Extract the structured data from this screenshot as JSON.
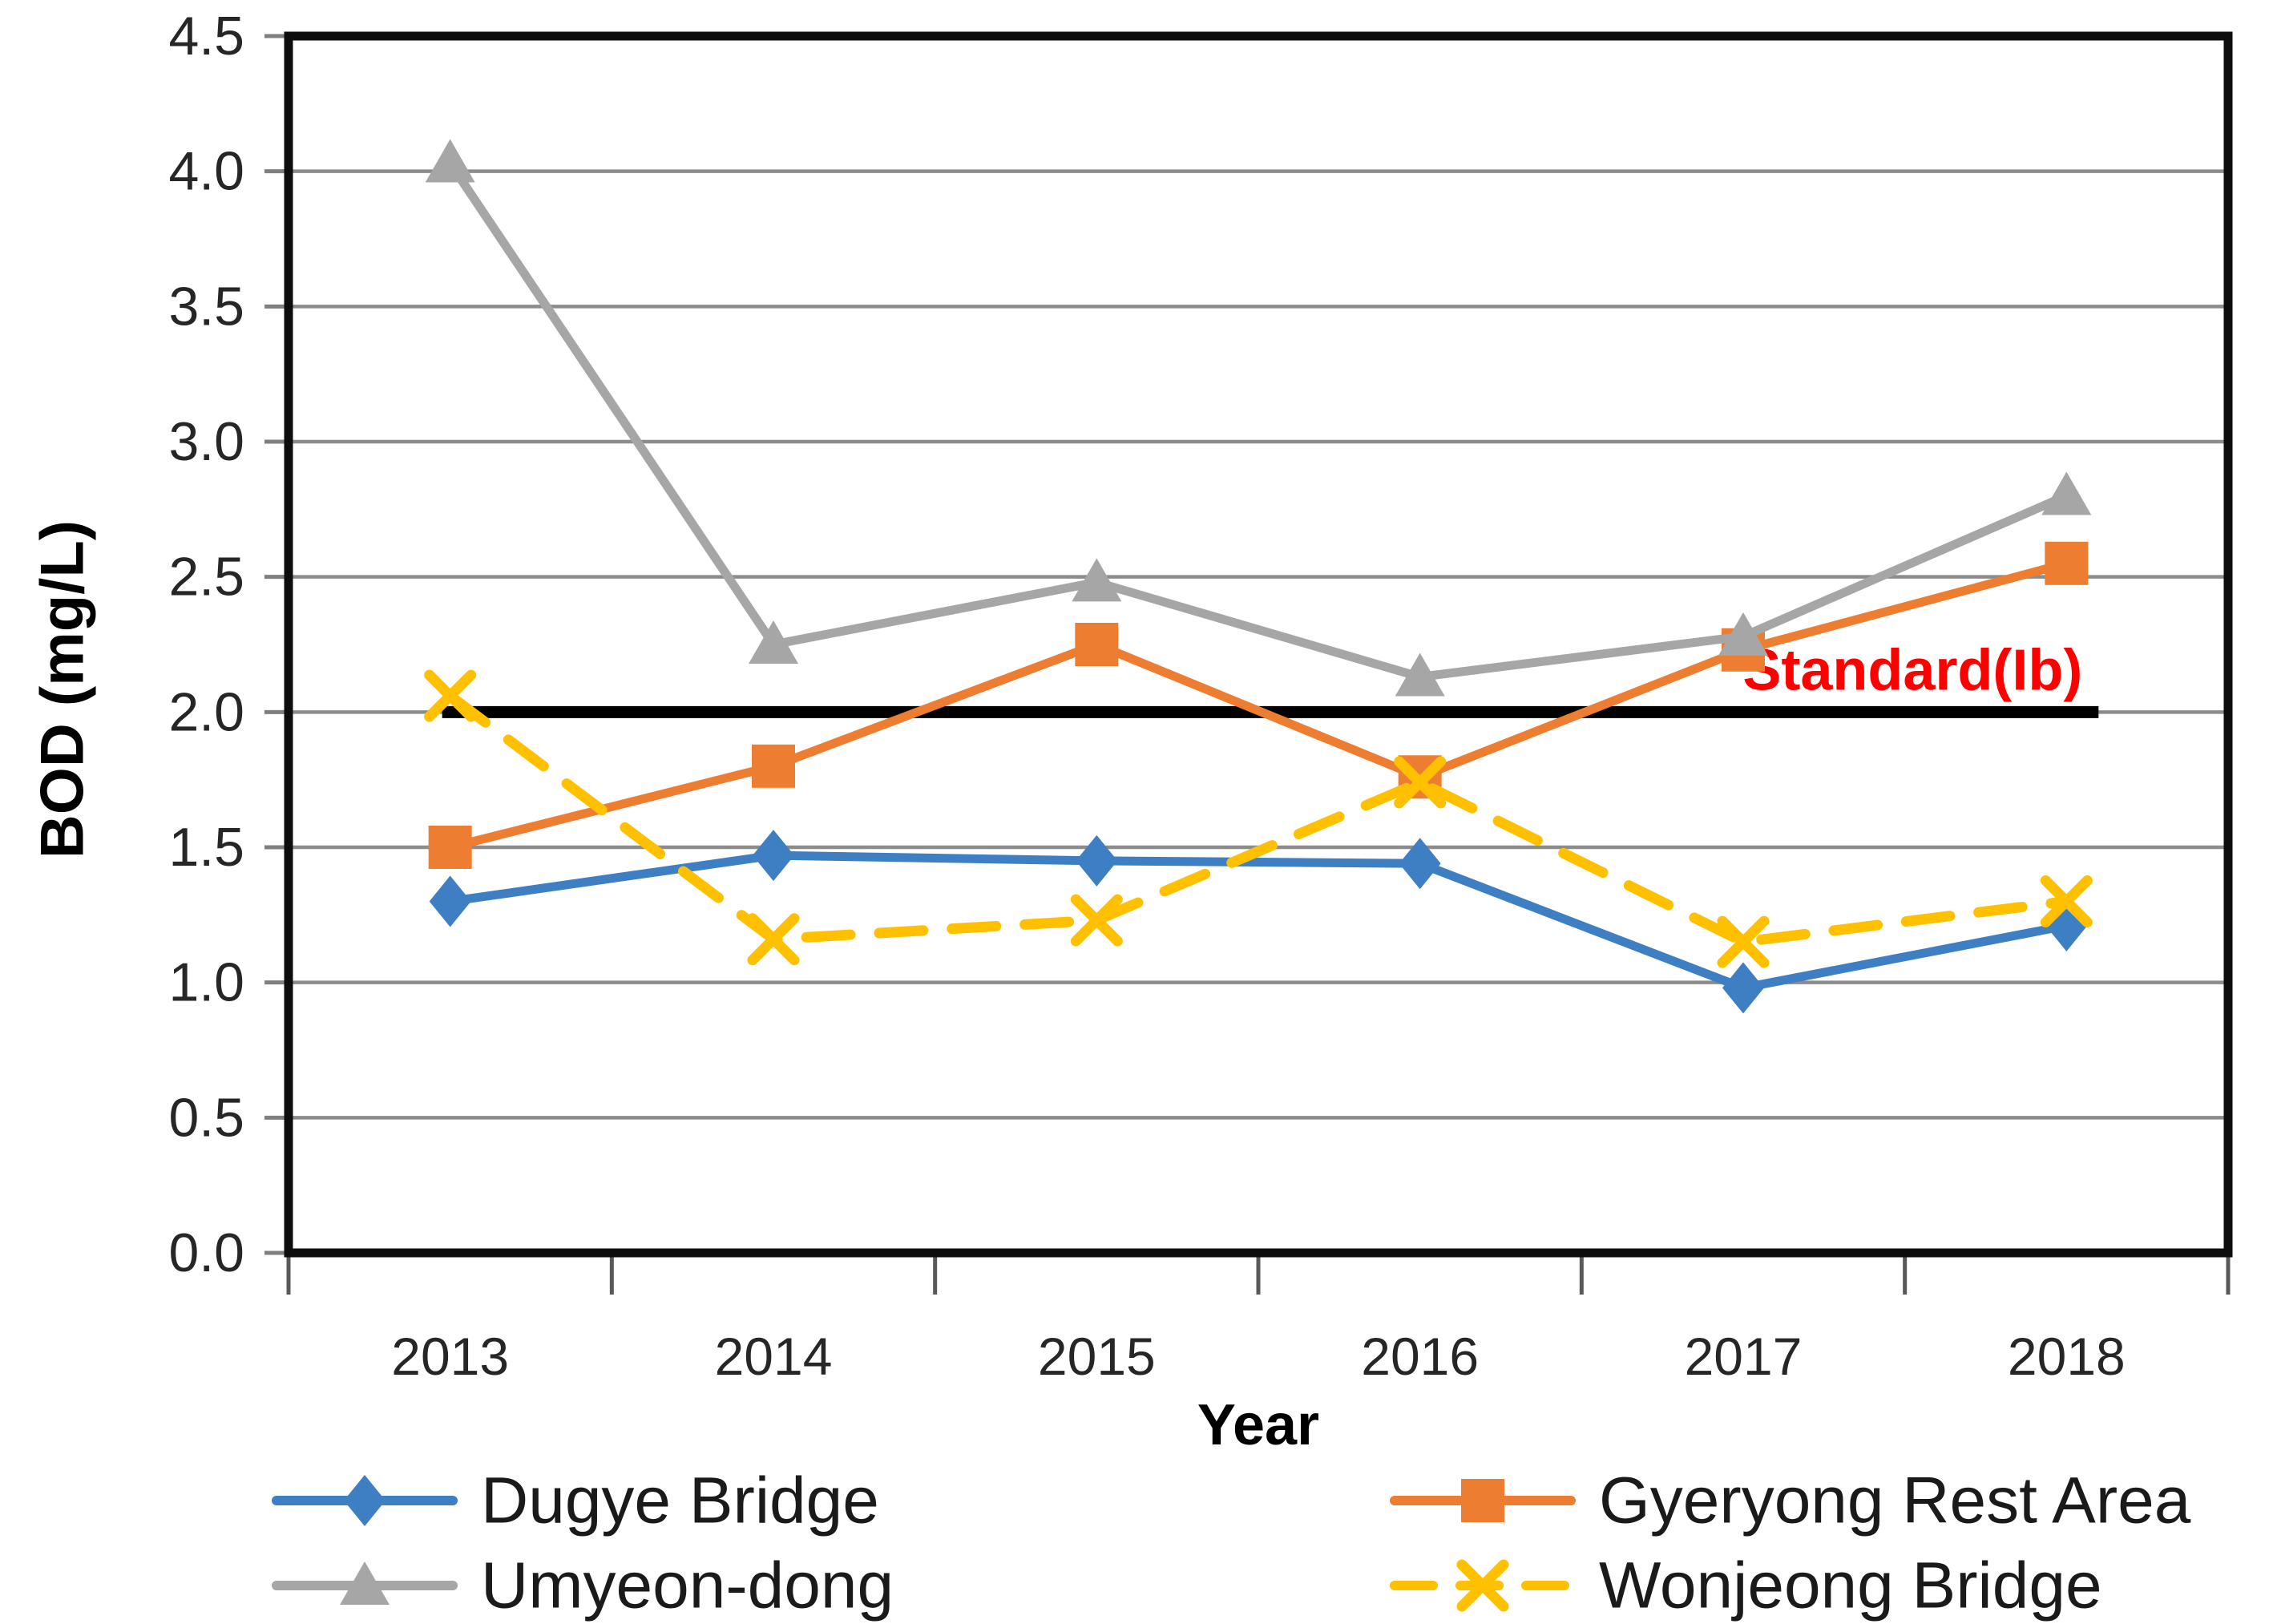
{
  "chart_data": {
    "type": "line",
    "title": "",
    "xlabel": "Year",
    "ylabel": "BOD (mg/L)",
    "ylim": [
      0,
      4.5
    ],
    "ytick_step": 0.5,
    "ytick_labels": [
      "0.0",
      "0.5",
      "1.0",
      "1.5",
      "2.0",
      "2.5",
      "3.0",
      "3.5",
      "4.0",
      "4.5"
    ],
    "grid": true,
    "legend_position": "bottom",
    "categories": [
      "2013",
      "2014",
      "2015",
      "2016",
      "2017",
      "2018"
    ],
    "series": [
      {
        "name": "Dugye Bridge",
        "color": "#3E7FC4",
        "marker": "diamond",
        "line_style": "solid",
        "values": [
          1.3,
          1.47,
          1.45,
          1.44,
          0.98,
          1.21
        ]
      },
      {
        "name": "Gyeryong Rest Area",
        "color": "#ED7D31",
        "marker": "square",
        "line_style": "solid",
        "values": [
          1.5,
          1.8,
          2.25,
          1.76,
          2.23,
          2.55
        ]
      },
      {
        "name": "Umyeon-dong",
        "color": "#A6A6A6",
        "marker": "triangle",
        "line_style": "solid",
        "values": [
          4.03,
          2.25,
          2.48,
          2.13,
          2.28,
          2.8
        ]
      },
      {
        "name": "Wonjeong Bridge",
        "color": "#FFC000",
        "marker": "x",
        "line_style": "dashed",
        "values": [
          2.06,
          1.16,
          1.23,
          1.74,
          1.15,
          1.3
        ]
      }
    ],
    "reference_line": {
      "label": "Standard(Ib)",
      "value": 2.0,
      "line_color": "#000000",
      "label_color": "#FF0000",
      "from_category": "2013",
      "to_category": "2018"
    },
    "colors": {
      "grid": "#8C8C8C",
      "frame": "#0D0D0D",
      "tick_text": "#262626",
      "axis_title_text": "#000000",
      "legend_text": "#1A1A1A",
      "background": "#FFFFFF"
    }
  }
}
